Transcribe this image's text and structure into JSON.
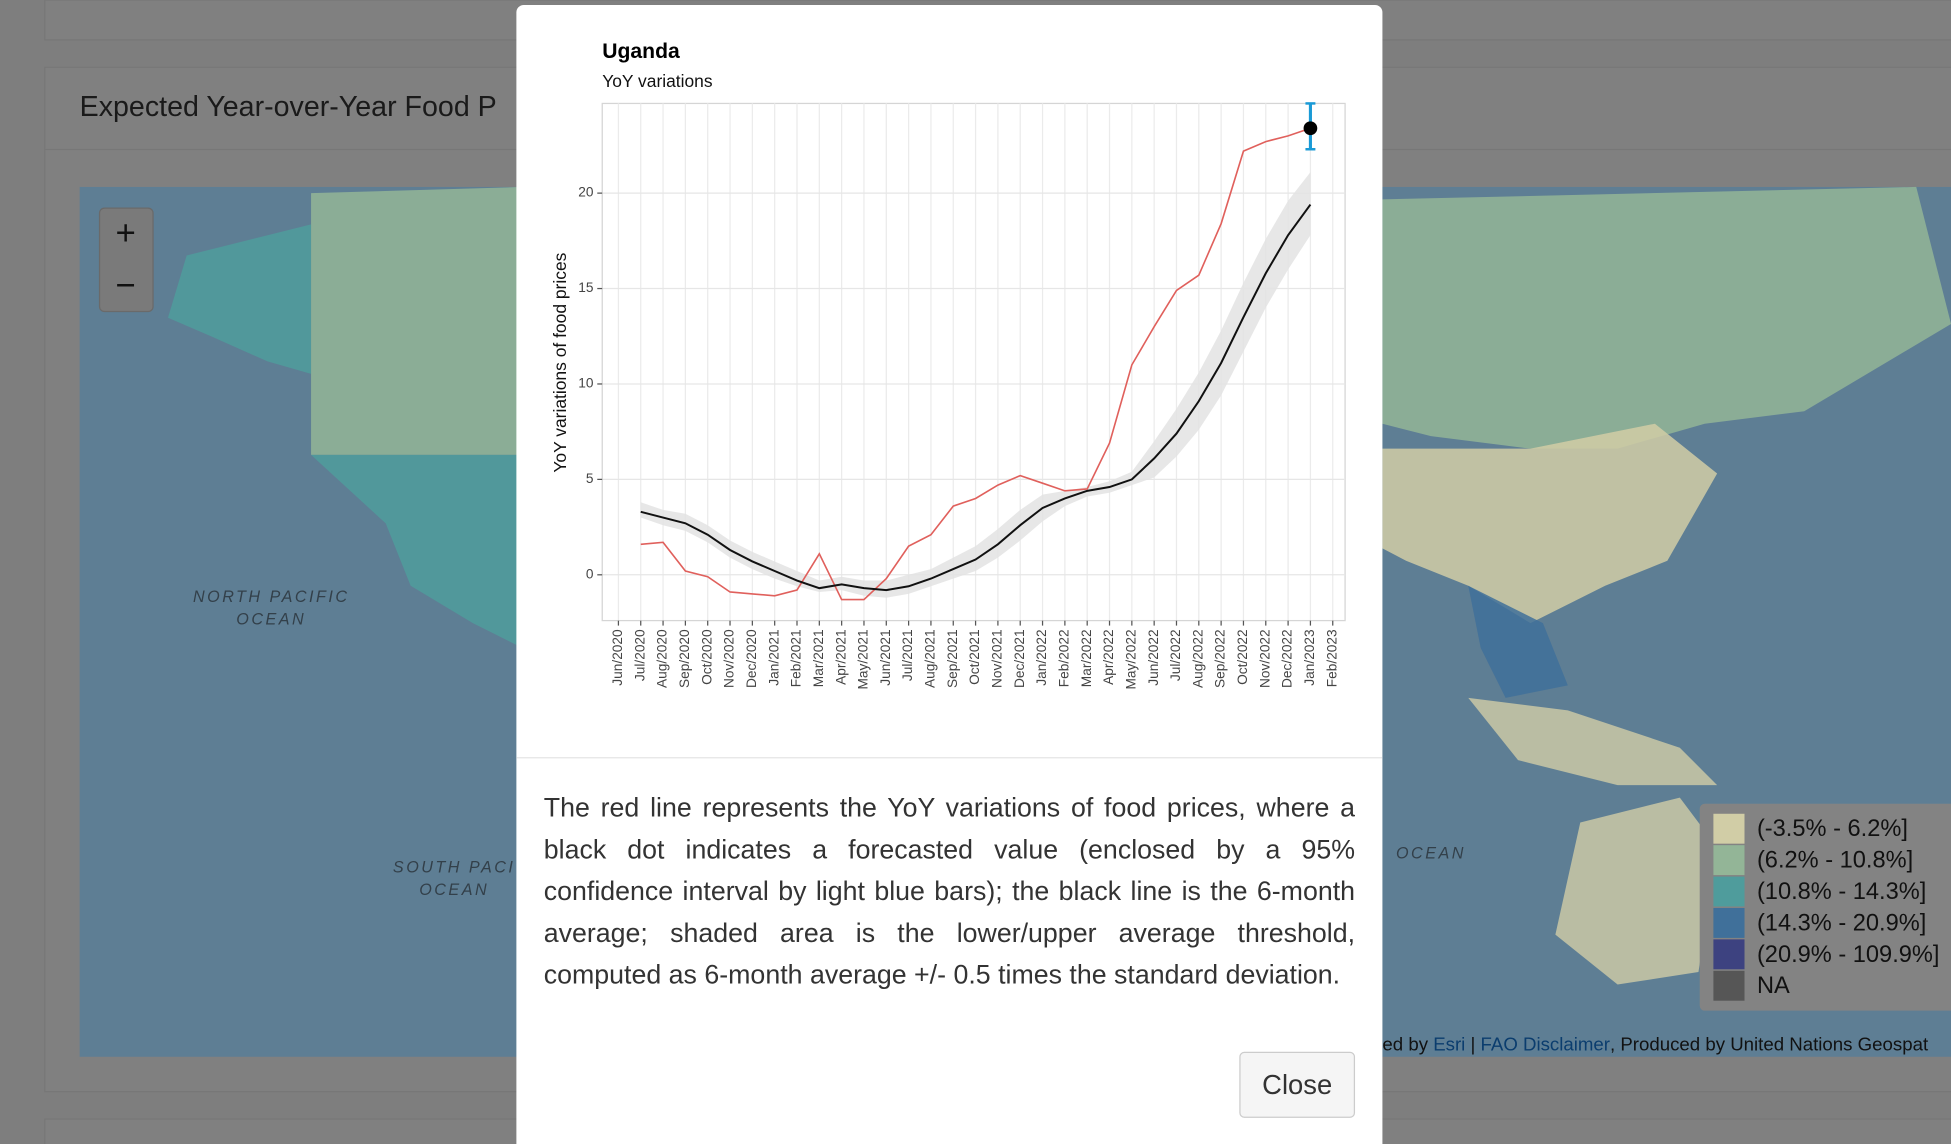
{
  "page": {
    "title": "Expected Year-over-Year Food P",
    "zoom_in": "+",
    "zoom_out": "−",
    "map_labels": [
      "NORTH PACIFIC",
      "OCEAN",
      "SOUTH PACI",
      "OCEAN",
      "OCEAN"
    ],
    "attribution": [
      "ed by ",
      "Esri",
      " | ",
      "FAO Disclaimer",
      ", Produced by United Nations Geospat"
    ],
    "legend": [
      {
        "label": "(-3.5% - 6.2%]",
        "color": "#d1cda6"
      },
      {
        "label": "(6.2% - 10.8%]",
        "color": "#93b597"
      },
      {
        "label": "(10.8% - 14.3%]",
        "color": "#4f9c9c"
      },
      {
        "label": "(14.3% - 20.9%]",
        "color": "#40709a"
      },
      {
        "label": "(20.9% - 109.9%]",
        "color": "#3d4280"
      },
      {
        "label": "NA",
        "color": "#565656"
      }
    ]
  },
  "modal": {
    "description": "The red line represents the YoY variations of food prices, where a black dot indicates a forecasted value (enclosed by a 95% confidence interval by light blue bars); the black line is the 6-month average; shaded area is the lower/upper average threshold, computed as 6-month average +/- 0.5 times the standard deviation.",
    "close": "Close"
  },
  "chart_data": {
    "type": "line",
    "title": "Uganda",
    "subtitle": "YoY variations",
    "y_label": "YoY variations of food prices",
    "categories": [
      "Jun/2020",
      "Jul/2020",
      "Aug/2020",
      "Sep/2020",
      "Oct/2020",
      "Nov/2020",
      "Dec/2020",
      "Jan/2021",
      "Feb/2021",
      "Mar/2021",
      "Apr/2021",
      "May/2021",
      "Jun/2021",
      "Jul/2021",
      "Aug/2021",
      "Sep/2021",
      "Oct/2021",
      "Nov/2021",
      "Dec/2021",
      "Jan/2022",
      "Feb/2022",
      "Mar/2022",
      "Apr/2022",
      "May/2022",
      "Jun/2022",
      "Jul/2022",
      "Aug/2022",
      "Sep/2022",
      "Oct/2022",
      "Nov/2022",
      "Dec/2022",
      "Jan/2023",
      "Feb/2023"
    ],
    "band": {
      "color": "#e3e3e3",
      "lower": [
        null,
        3.0,
        2.6,
        2.3,
        1.7,
        0.9,
        0.3,
        -0.2,
        -0.6,
        -0.9,
        -0.8,
        -1.1,
        -1.2,
        -1.0,
        -0.6,
        -0.2,
        0.2,
        0.9,
        1.8,
        2.8,
        3.6,
        4.1,
        4.3,
        4.7,
        5.1,
        6.2,
        7.6,
        9.4,
        11.7,
        14.0,
        16.0,
        17.8,
        null
      ],
      "upper": [
        null,
        3.8,
        3.4,
        3.2,
        2.6,
        1.8,
        1.2,
        0.7,
        0.2,
        -0.3,
        -0.1,
        -0.3,
        -0.3,
        0.0,
        0.3,
        0.9,
        1.5,
        2.4,
        3.4,
        4.2,
        4.4,
        4.6,
        4.9,
        5.4,
        7.0,
        8.7,
        10.6,
        12.8,
        15.3,
        17.6,
        19.6,
        21.1,
        null
      ]
    },
    "series": [
      {
        "color": "#e0605c",
        "values": [
          null,
          1.6,
          1.7,
          0.2,
          -0.1,
          -0.9,
          -1.0,
          -1.1,
          -0.8,
          1.1,
          -1.3,
          -1.3,
          -0.2,
          1.5,
          2.1,
          3.6,
          4.0,
          4.7,
          5.2,
          4.8,
          4.4,
          4.5,
          6.9,
          11.0,
          13.0,
          14.9,
          15.7,
          18.4,
          22.2,
          22.7,
          23.0,
          23.4,
          null
        ]
      },
      {
        "color": "#111111",
        "values": [
          null,
          3.3,
          3.0,
          2.7,
          2.1,
          1.3,
          0.7,
          0.2,
          -0.3,
          -0.7,
          -0.5,
          -0.7,
          -0.8,
          -0.6,
          -0.2,
          0.3,
          0.8,
          1.6,
          2.6,
          3.5,
          4.0,
          4.4,
          4.6,
          5.0,
          6.1,
          7.4,
          9.1,
          11.1,
          13.5,
          15.8,
          17.8,
          19.4,
          null
        ]
      }
    ],
    "forecast": {
      "category": "Jan/2023",
      "value": 23.4,
      "lower": 22.3,
      "upper": 24.7,
      "color": "#000000",
      "bar_color": "#1a9ad6"
    },
    "ylim": [
      -2.4,
      24.7
    ],
    "yticks": [
      0,
      5,
      10,
      15,
      20
    ],
    "grid": true
  }
}
